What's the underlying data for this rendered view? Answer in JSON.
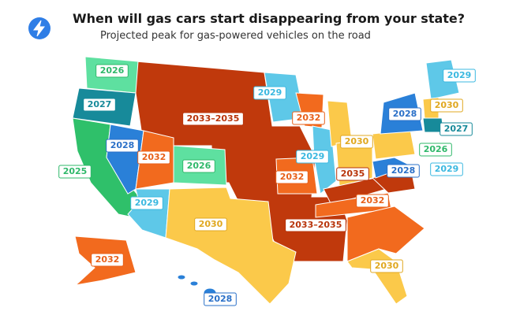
{
  "header": {
    "title": "When will gas cars start disappearing from your state?",
    "subtitle": "Projected peak for gas-powered vehicles on the road"
  },
  "labels": [
    "2026",
    "2027",
    "2028",
    "2025",
    "2032",
    "2026",
    "2029",
    "2030",
    "2033–2035",
    "2029",
    "2032",
    "2029",
    "2032",
    "2030",
    "2035",
    "2033–2035",
    "2032",
    "2030",
    "2032",
    "2028",
    "2028",
    "2030",
    "2029",
    "2027",
    "2026",
    "2028",
    "2029"
  ]
}
